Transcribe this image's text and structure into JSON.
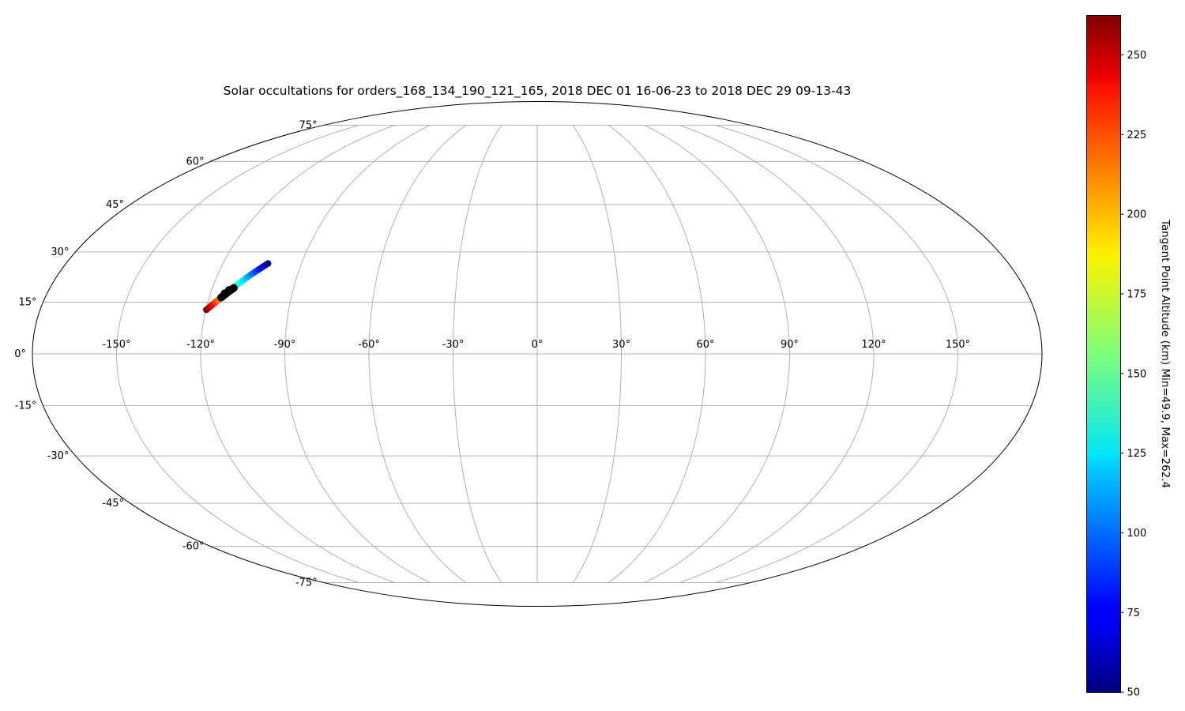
{
  "chart_data": {
    "type": "scatter",
    "projection": "mollweide",
    "title": "Solar occultations for orders_168_134_190_121_165, 2018 DEC 01 16-06-23 to 2018 DEC 29 09-13-43",
    "xlabel": "",
    "ylabel": "",
    "grid": true,
    "lon_ticks": [
      -150,
      -120,
      -90,
      -60,
      -30,
      0,
      30,
      60,
      90,
      120,
      150
    ],
    "lon_tick_labels": [
      "-150°",
      "-120°",
      "-90°",
      "-60°",
      "-30°",
      "0°",
      "30°",
      "60°",
      "90°",
      "120°",
      "150°"
    ],
    "lat_ticks": [
      75,
      60,
      45,
      30,
      15,
      0,
      -15,
      -30,
      -45,
      -60,
      -75
    ],
    "lat_tick_labels": [
      "75°",
      "60°",
      "45°",
      "30°",
      "15°",
      "0°",
      "-15°",
      "-30°",
      "-45°",
      "-60°",
      "-75°"
    ],
    "xlim": [
      -180,
      180
    ],
    "ylim": [
      -90,
      90
    ],
    "series": [
      {
        "points": [
          {
            "lon": -119.8,
            "lat": 12.8,
            "alt": 262.4
          },
          {
            "lon": -119.2,
            "lat": 13.3,
            "alt": 255
          },
          {
            "lon": -118.6,
            "lat": 13.8,
            "alt": 246
          },
          {
            "lon": -118.0,
            "lat": 14.3,
            "alt": 237
          },
          {
            "lon": -117.4,
            "lat": 14.8,
            "alt": 228
          },
          {
            "lon": -116.9,
            "lat": 15.3,
            "alt": 220
          },
          {
            "lon": -116.3,
            "lat": 15.8,
            "alt": 212
          },
          {
            "lon": -115.8,
            "lat": 16.3,
            "alt": 204
          },
          {
            "lon": -115.2,
            "lat": 16.8,
            "alt": 196
          },
          {
            "lon": -114.6,
            "lat": 17.3,
            "alt": 188
          },
          {
            "lon": -114.0,
            "lat": 17.8,
            "alt": 180
          },
          {
            "lon": -113.4,
            "lat": 18.3,
            "alt": 172
          },
          {
            "lon": -112.8,
            "lat": 18.8,
            "alt": 164
          },
          {
            "lon": -112.2,
            "lat": 19.3,
            "alt": 156
          },
          {
            "lon": -111.6,
            "lat": 19.8,
            "alt": 148
          },
          {
            "lon": -111.0,
            "lat": 20.3,
            "alt": 140
          },
          {
            "lon": -110.3,
            "lat": 20.9,
            "alt": 133
          },
          {
            "lon": -109.7,
            "lat": 21.4,
            "alt": 126
          },
          {
            "lon": -109.0,
            "lat": 22.0,
            "alt": 119
          },
          {
            "lon": -108.3,
            "lat": 22.5,
            "alt": 112
          },
          {
            "lon": -107.6,
            "lat": 23.1,
            "alt": 105
          },
          {
            "lon": -106.9,
            "lat": 23.6,
            "alt": 98
          },
          {
            "lon": -106.2,
            "lat": 24.1,
            "alt": 91
          },
          {
            "lon": -105.5,
            "lat": 24.6,
            "alt": 84
          },
          {
            "lon": -104.8,
            "lat": 25.1,
            "alt": 76
          },
          {
            "lon": -104.1,
            "lat": 25.6,
            "alt": 68
          },
          {
            "lon": -103.4,
            "lat": 26.1,
            "alt": 60
          },
          {
            "lon": -102.8,
            "lat": 26.5,
            "alt": 49.9
          }
        ],
        "no_data_points": [
          {
            "lon": -115.6,
            "lat": 16.4
          },
          {
            "lon": -115.0,
            "lat": 16.9
          },
          {
            "lon": -114.4,
            "lat": 17.4
          },
          {
            "lon": -113.8,
            "lat": 17.9
          },
          {
            "lon": -113.2,
            "lat": 18.4
          },
          {
            "lon": -112.6,
            "lat": 18.8
          },
          {
            "lon": -112.1,
            "lat": 19.2
          },
          {
            "lon": -114.8,
            "lat": 17.6
          },
          {
            "lon": -113.6,
            "lat": 18.6
          }
        ]
      }
    ],
    "colorbar": {
      "label": "Tangent Point Altitude (km) Min=49.9, Max=262.4",
      "min": 49.9,
      "max": 262.4,
      "colormap": "jet",
      "ticks": [
        50,
        75,
        100,
        125,
        150,
        175,
        200,
        225,
        250
      ],
      "tick_labels": [
        "50",
        "75",
        "100",
        "125",
        "150",
        "175",
        "200",
        "225",
        "250"
      ]
    }
  }
}
